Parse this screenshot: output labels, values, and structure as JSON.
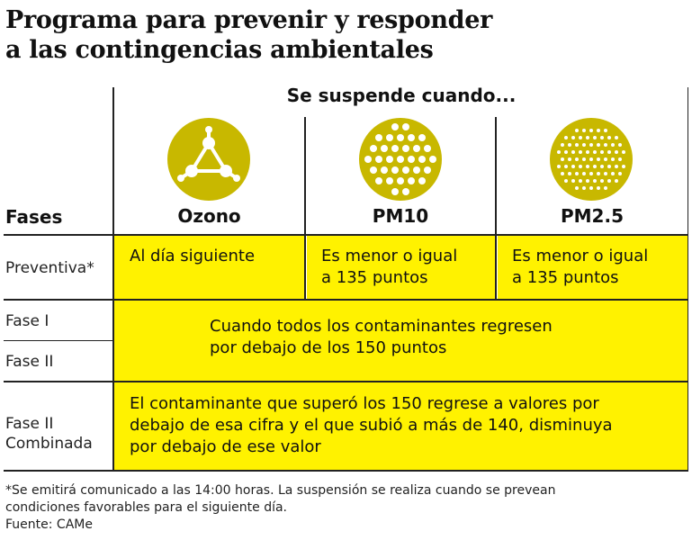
{
  "title": {
    "line1": "Programa para prevenir y responder",
    "line2": "a las contingencias ambientales"
  },
  "table": {
    "suspend_header": "Se suspende cuando...",
    "fases_header": "Fases",
    "columns": [
      {
        "label": "Ozono",
        "icon": "molecule-icon"
      },
      {
        "label": "PM10",
        "icon": "large-particles-icon"
      },
      {
        "label": "PM2.5",
        "icon": "fine-particles-icon"
      }
    ],
    "rows": {
      "preventiva": {
        "label": "Preventiva*",
        "ozono": "Al día siguiente",
        "pm10": [
          "Es menor o igual",
          "a 135 puntos"
        ],
        "pm25": [
          "Es menor o igual",
          "a 135 puntos"
        ]
      },
      "fase1": {
        "label": "Fase I"
      },
      "fase2": {
        "label": "Fase II"
      },
      "fase1_2_text": [
        "Cuando todos los contaminantes regresen",
        "por debajo de los 150 puntos"
      ],
      "fase2_combinada": {
        "label": [
          "Fase II",
          "Combinada"
        ],
        "text": [
          "El contaminante que superó los 150 regrese a valores por",
          "debajo de esa cifra y el que subió a más de 140, disminuya",
          "por debajo de ese valor"
        ]
      }
    }
  },
  "footnotes": {
    "note": [
      "*Se emitirá comunicado a las 14:00 horas. La suspensión se realiza cuando se prevean",
      "condiciones favorables para el siguiente día."
    ],
    "source": "Fuente: CAMe"
  },
  "colors": {
    "highlight": "#fff200",
    "icon": "#c8b800",
    "rule": "#222222"
  }
}
